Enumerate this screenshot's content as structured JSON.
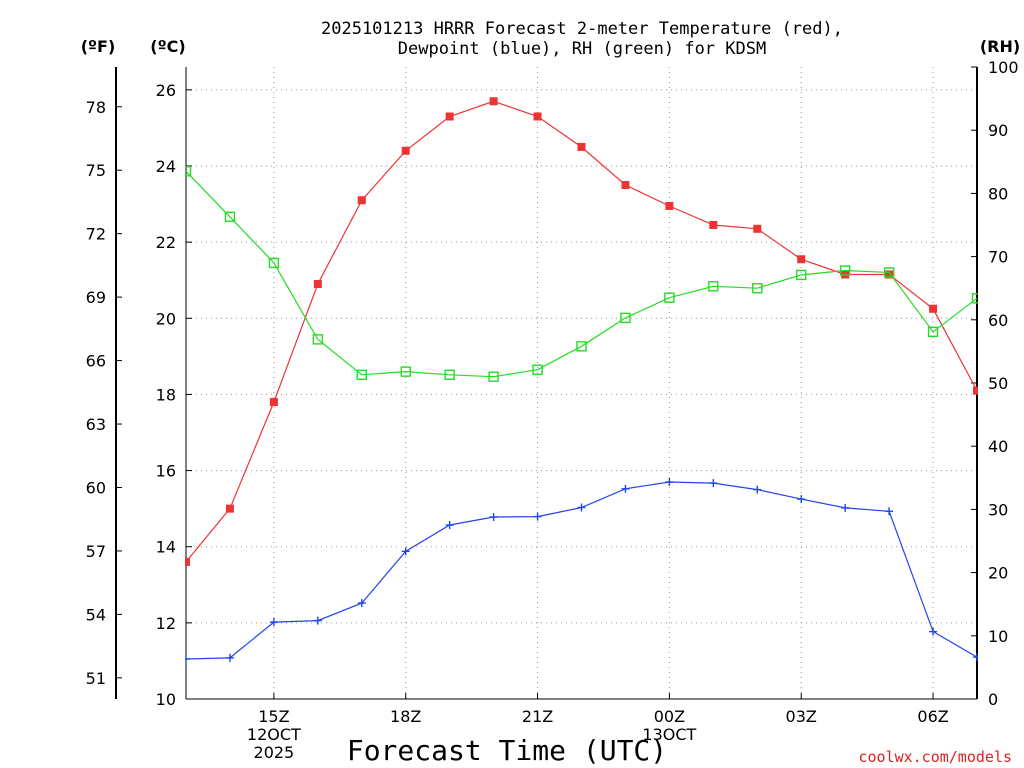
{
  "chart_data": {
    "type": "line",
    "title": [
      "2025101213 HRRR Forecast 2-meter Temperature (red),",
      "Dewpoint (blue), RH (green) for KDSM"
    ],
    "xlabel": "Forecast Time (UTC)",
    "credit": "coolwx.com/models",
    "units": {
      "fahrenheit": "(ºF)",
      "celsius": "(ºC)",
      "rh": "(RH)"
    },
    "x_hours": [
      13,
      14,
      15,
      16,
      17,
      18,
      19,
      20,
      21,
      22,
      23,
      24,
      25,
      26,
      27,
      28,
      29,
      30,
      31
    ],
    "xlim": [
      13,
      31
    ],
    "x_ticks": [
      {
        "hour": 15,
        "lines": [
          "15Z",
          "12OCT",
          "2025"
        ]
      },
      {
        "hour": 18,
        "lines": [
          "18Z"
        ]
      },
      {
        "hour": 21,
        "lines": [
          "21Z"
        ]
      },
      {
        "hour": 24,
        "lines": [
          "00Z",
          "13OCT"
        ]
      },
      {
        "hour": 27,
        "lines": [
          "03Z"
        ]
      },
      {
        "hour": 30,
        "lines": [
          "06Z"
        ]
      }
    ],
    "y_celsius": {
      "lim": [
        10,
        26.6
      ],
      "ticks": [
        "10",
        "12",
        "14",
        "16",
        "18",
        "20",
        "22",
        "24",
        "26"
      ]
    },
    "y_fahrenheit": {
      "ticks": [
        "51",
        "54",
        "57",
        "60",
        "63",
        "66",
        "69",
        "72",
        "75",
        "78"
      ]
    },
    "y_rh": {
      "lim": [
        0,
        100
      ],
      "ticks": [
        "0",
        "10",
        "20",
        "30",
        "40",
        "50",
        "60",
        "70",
        "80",
        "90",
        "100"
      ]
    },
    "series": [
      {
        "name": "Temperature",
        "axis": "celsius",
        "color": "#ee3333",
        "marker": "filled-square",
        "values": [
          13.6,
          15.0,
          17.8,
          20.9,
          23.1,
          24.4,
          25.3,
          25.7,
          25.3,
          24.5,
          23.5,
          22.95,
          22.45,
          22.35,
          21.55,
          21.15,
          21.15,
          20.25,
          18.1
        ]
      },
      {
        "name": "Dewpoint",
        "axis": "celsius",
        "color": "#2244ee",
        "marker": "plus",
        "values": [
          11.05,
          11.08,
          12.02,
          12.06,
          12.52,
          13.88,
          14.57,
          14.78,
          14.79,
          15.03,
          15.52,
          15.7,
          15.67,
          15.5,
          15.25,
          15.02,
          14.93,
          11.77,
          11.1
        ]
      },
      {
        "name": "RH",
        "axis": "rh",
        "color": "#22dd22",
        "marker": "open-square",
        "values": [
          83.5,
          76.3,
          69.0,
          56.9,
          51.3,
          51.8,
          51.3,
          51.0,
          52.1,
          55.8,
          60.3,
          63.5,
          65.3,
          65.0,
          67.1,
          67.8,
          67.5,
          58.1,
          63.4
        ]
      }
    ]
  }
}
